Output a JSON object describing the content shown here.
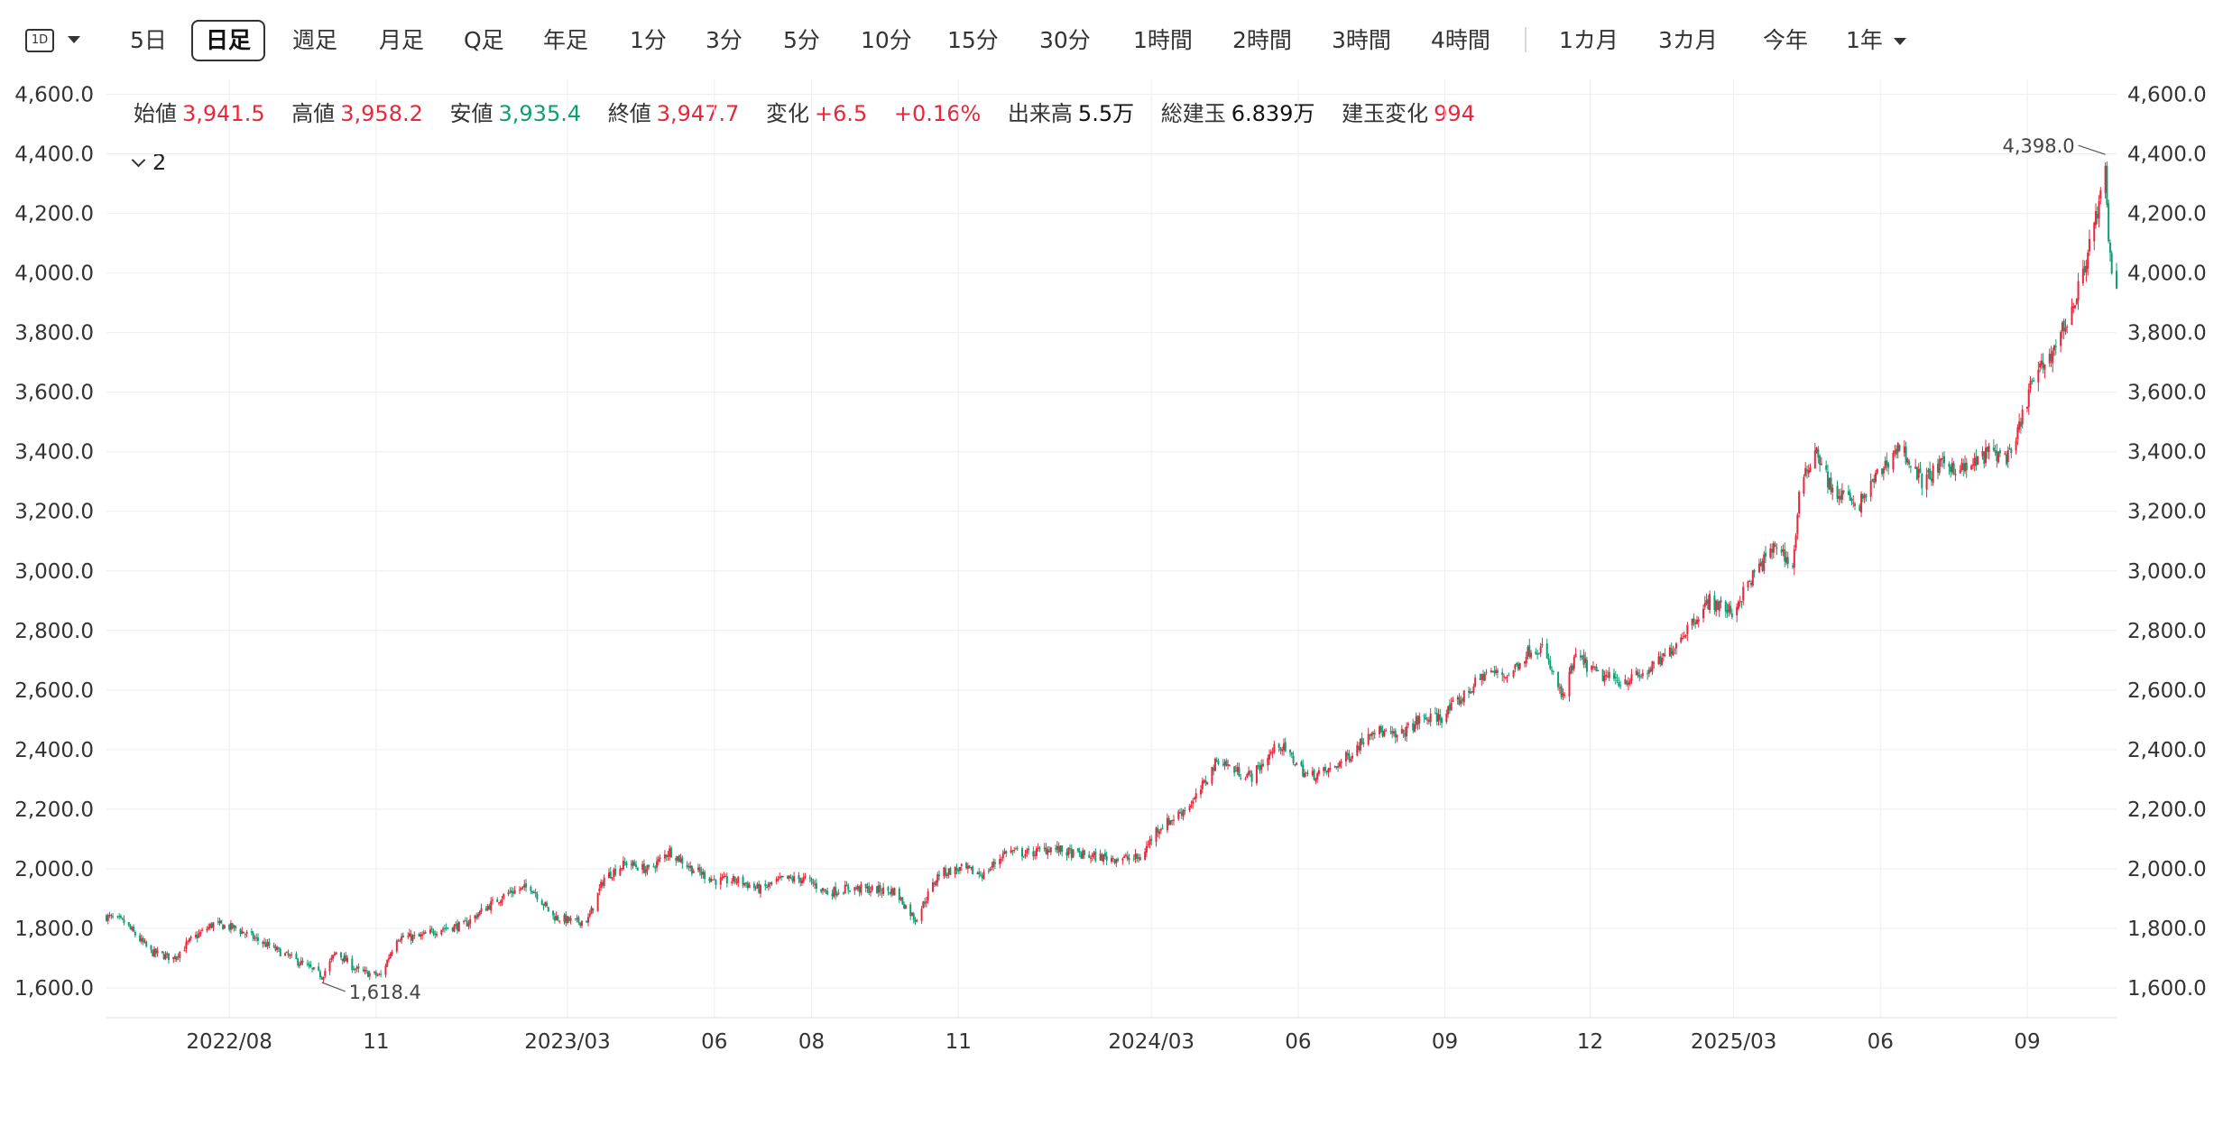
{
  "toolbar": {
    "interval_icon": "1D",
    "items": [
      "5日",
      "日足",
      "週足",
      "月足",
      "Q足",
      "年足",
      "1分",
      "3分",
      "5分",
      "10分",
      "15分",
      "30分",
      "1時間",
      "2時間",
      "3時間",
      "4時間"
    ],
    "active": "日足",
    "ranges": [
      "1カ月",
      "3カ月",
      "今年",
      "1年"
    ]
  },
  "legend": {
    "open_label": "始値",
    "open": "3,941.5",
    "high_label": "高値",
    "high": "3,958.2",
    "low_label": "安値",
    "low": "3,935.4",
    "close_label": "終値",
    "close": "3,947.7",
    "change_label": "変化",
    "change": "+6.5",
    "change_pct": "+0.16%",
    "volume_label": "出来高",
    "volume": "5.5万",
    "oi_label": "総建玉",
    "oi": "6.839万",
    "oi_change_label": "建玉変化",
    "oi_change": "994"
  },
  "layers": {
    "label": "2"
  },
  "colors": {
    "up": "#e8273c",
    "down": "#0f9d73",
    "grid": "#eeeeee",
    "text": "#333333"
  },
  "chart_data": {
    "type": "candlestick",
    "x_tick_labels": [
      "2022/08",
      "11",
      "2023/03",
      "06",
      "08",
      "11",
      "2024/03",
      "06",
      "09",
      "12",
      "2025/03",
      "06",
      "09"
    ],
    "x_tick_dates": [
      "2022-08-01",
      "2022-11-01",
      "2023-03-01",
      "2023-06-01",
      "2023-08-01",
      "2023-11-01",
      "2024-03-01",
      "2024-06-01",
      "2024-09-01",
      "2024-12-01",
      "2025-03-01",
      "2025-06-01",
      "2025-09-01"
    ],
    "x_range": [
      "2022-05-16",
      "2025-10-27"
    ],
    "y_ticks": [
      1600,
      1800,
      2000,
      2200,
      2400,
      2600,
      2800,
      3000,
      3200,
      3400,
      3600,
      3800,
      4000,
      4200,
      4400,
      4600
    ],
    "y_tick_labels": [
      "1,600.0",
      "1,800.0",
      "2,000.0",
      "2,200.0",
      "2,400.0",
      "2,600.0",
      "2,800.0",
      "3,000.0",
      "3,200.0",
      "3,400.0",
      "3,600.0",
      "3,800.0",
      "4,000.0",
      "4,200.0",
      "4,400.0",
      "4,600.0"
    ],
    "ylim": [
      1500,
      4650
    ],
    "grid": true,
    "annotations": [
      {
        "label": "4,398.0",
        "date": "2025-10-20",
        "value": 4398.0
      },
      {
        "label": "1,618.4",
        "date": "2022-09-28",
        "value": 1618.4
      }
    ],
    "close_path": [
      [
        "2022-05-16",
        1840
      ],
      [
        "2022-05-27",
        1820
      ],
      [
        "2022-06-13",
        1720
      ],
      [
        "2022-06-27",
        1700
      ],
      [
        "2022-07-08",
        1760
      ],
      [
        "2022-07-22",
        1815
      ],
      [
        "2022-08-05",
        1800
      ],
      [
        "2022-08-19",
        1760
      ],
      [
        "2022-09-02",
        1720
      ],
      [
        "2022-09-16",
        1680
      ],
      [
        "2022-09-28",
        1640
      ],
      [
        "2022-10-07",
        1720
      ],
      [
        "2022-10-21",
        1655
      ],
      [
        "2022-11-04",
        1640
      ],
      [
        "2022-11-14",
        1770
      ],
      [
        "2022-11-28",
        1770
      ],
      [
        "2022-12-12",
        1800
      ],
      [
        "2022-12-26",
        1810
      ],
      [
        "2023-01-09",
        1870
      ],
      [
        "2023-01-23",
        1920
      ],
      [
        "2023-02-06",
        1940
      ],
      [
        "2023-02-20",
        1840
      ],
      [
        "2023-03-06",
        1820
      ],
      [
        "2023-03-14",
        1830
      ],
      [
        "2023-03-24",
        1970
      ],
      [
        "2023-04-07",
        2020
      ],
      [
        "2023-04-21",
        1995
      ],
      [
        "2023-05-04",
        2060
      ],
      [
        "2023-05-18",
        2000
      ],
      [
        "2023-06-02",
        1960
      ],
      [
        "2023-06-16",
        1960
      ],
      [
        "2023-06-30",
        1930
      ],
      [
        "2023-07-14",
        1965
      ],
      [
        "2023-07-28",
        1965
      ],
      [
        "2023-08-11",
        1920
      ],
      [
        "2023-08-25",
        1935
      ],
      [
        "2023-09-08",
        1930
      ],
      [
        "2023-09-22",
        1925
      ],
      [
        "2023-10-05",
        1830
      ],
      [
        "2023-10-20",
        1985
      ],
      [
        "2023-11-03",
        2000
      ],
      [
        "2023-11-17",
        1980
      ],
      [
        "2023-12-01",
        2060
      ],
      [
        "2023-12-15",
        2050
      ],
      [
        "2023-12-29",
        2070
      ],
      [
        "2024-01-12",
        2050
      ],
      [
        "2024-01-26",
        2040
      ],
      [
        "2024-02-09",
        2035
      ],
      [
        "2024-02-23",
        2035
      ],
      [
        "2024-03-04",
        2130
      ],
      [
        "2024-03-15",
        2170
      ],
      [
        "2024-03-28",
        2230
      ],
      [
        "2024-04-12",
        2370
      ],
      [
        "2024-04-22",
        2330
      ],
      [
        "2024-05-03",
        2310
      ],
      [
        "2024-05-20",
        2420
      ],
      [
        "2024-06-07",
        2310
      ],
      [
        "2024-06-21",
        2330
      ],
      [
        "2024-07-05",
        2390
      ],
      [
        "2024-07-17",
        2470
      ],
      [
        "2024-08-02",
        2440
      ],
      [
        "2024-08-16",
        2500
      ],
      [
        "2024-08-30",
        2510
      ],
      [
        "2024-09-13",
        2580
      ],
      [
        "2024-09-27",
        2660
      ],
      [
        "2024-10-11",
        2650
      ],
      [
        "2024-10-25",
        2740
      ],
      [
        "2024-11-01",
        2740
      ],
      [
        "2024-11-14",
        2570
      ],
      [
        "2024-11-22",
        2715
      ],
      [
        "2024-12-06",
        2650
      ],
      [
        "2024-12-20",
        2630
      ],
      [
        "2025-01-03",
        2650
      ],
      [
        "2025-01-17",
        2710
      ],
      [
        "2025-01-31",
        2810
      ],
      [
        "2025-02-14",
        2900
      ],
      [
        "2025-02-28",
        2860
      ],
      [
        "2025-03-14",
        2990
      ],
      [
        "2025-03-28",
        3090
      ],
      [
        "2025-04-07",
        3010
      ],
      [
        "2025-04-11",
        3250
      ],
      [
        "2025-04-21",
        3420
      ],
      [
        "2025-05-02",
        3260
      ],
      [
        "2025-05-12",
        3250
      ],
      [
        "2025-05-16",
        3200
      ],
      [
        "2025-05-30",
        3320
      ],
      [
        "2025-06-13",
        3420
      ],
      [
        "2025-06-27",
        3300
      ],
      [
        "2025-07-11",
        3360
      ],
      [
        "2025-07-25",
        3340
      ],
      [
        "2025-08-08",
        3400
      ],
      [
        "2025-08-22",
        3380
      ],
      [
        "2025-09-03",
        3620
      ],
      [
        "2025-09-17",
        3740
      ],
      [
        "2025-10-01",
        3900
      ],
      [
        "2025-10-14",
        4180
      ],
      [
        "2025-10-20",
        4330
      ],
      [
        "2025-10-22",
        4100
      ],
      [
        "2025-10-24",
        4000
      ],
      [
        "2025-10-27",
        3947.7
      ]
    ]
  }
}
